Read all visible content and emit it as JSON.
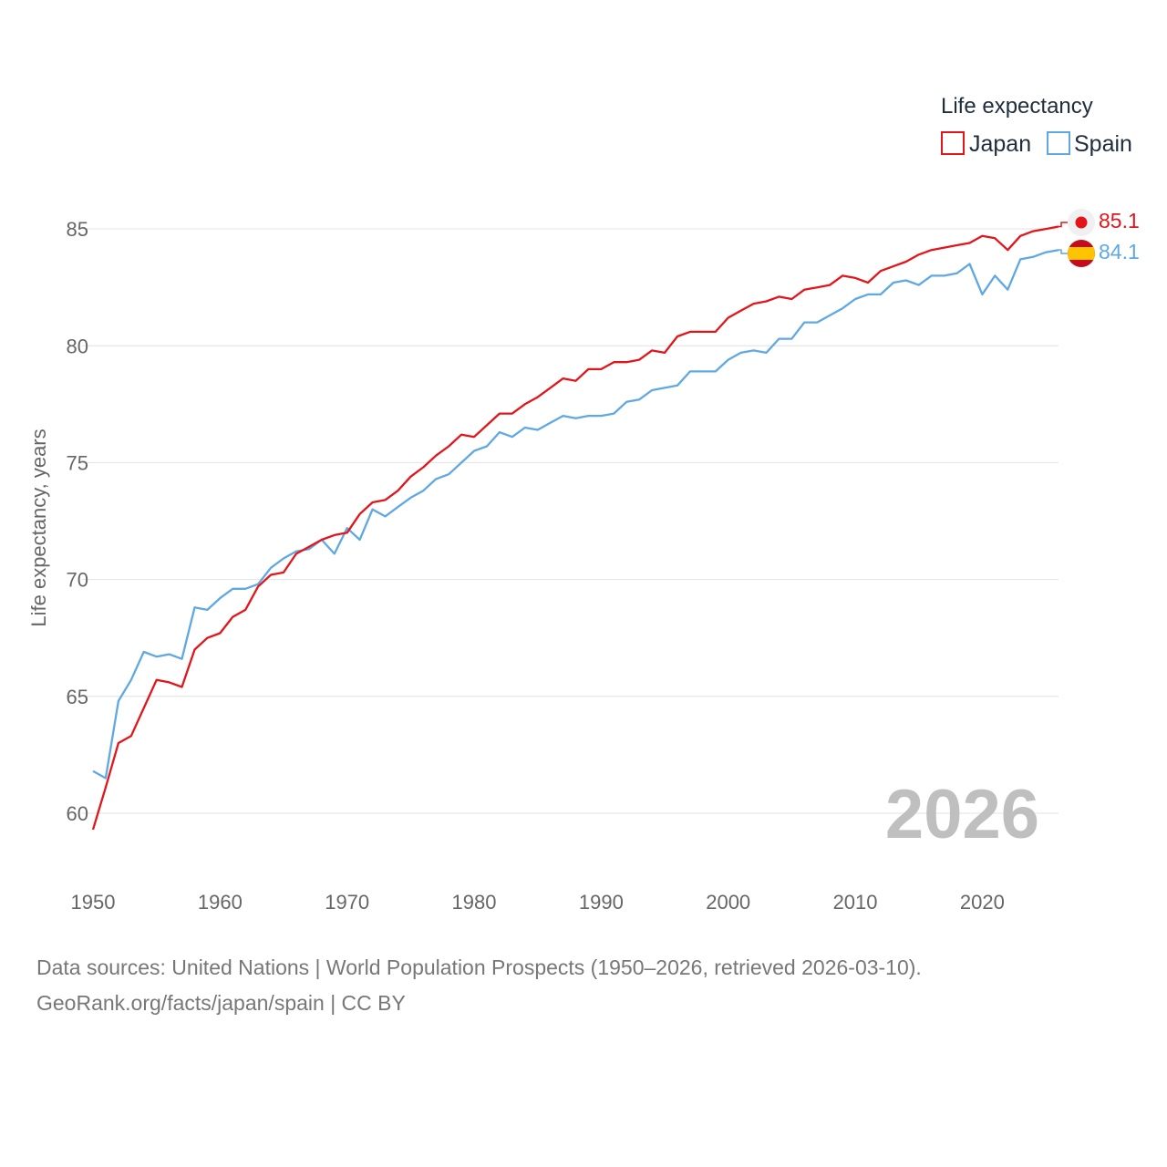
{
  "colors": {
    "japan": "#e3151a",
    "spain": "#5fa8e3",
    "grid": "#e6e6e6",
    "text": "#666666"
  },
  "icons": {
    "japan": "japan-flag-icon",
    "spain": "spain-flag-icon"
  },
  "year_watermark": "2026",
  "chart_data": {
    "type": "line",
    "title": "",
    "xlabel": "",
    "ylabel": "Life expectancy, years",
    "xlim": [
      1950,
      2026
    ],
    "ylim": [
      57.5,
      87.5
    ],
    "x_ticks": [
      1950,
      1960,
      1970,
      1980,
      1990,
      2000,
      2010,
      2020
    ],
    "y_ticks": [
      60,
      65,
      70,
      75,
      80,
      85
    ],
    "grid": true,
    "legend": {
      "title": "Life expectancy",
      "position": "top-right",
      "entries": [
        "Japan",
        "Spain"
      ]
    },
    "x": [
      1950,
      1951,
      1952,
      1953,
      1954,
      1955,
      1956,
      1957,
      1958,
      1959,
      1960,
      1961,
      1962,
      1963,
      1964,
      1965,
      1966,
      1967,
      1968,
      1969,
      1970,
      1971,
      1972,
      1973,
      1974,
      1975,
      1976,
      1977,
      1978,
      1979,
      1980,
      1981,
      1982,
      1983,
      1984,
      1985,
      1986,
      1987,
      1988,
      1989,
      1990,
      1991,
      1992,
      1993,
      1994,
      1995,
      1996,
      1997,
      1998,
      1999,
      2000,
      2001,
      2002,
      2003,
      2004,
      2005,
      2006,
      2007,
      2008,
      2009,
      2010,
      2011,
      2012,
      2013,
      2014,
      2015,
      2016,
      2017,
      2018,
      2019,
      2020,
      2021,
      2022,
      2023,
      2024,
      2025,
      2026
    ],
    "series": [
      {
        "name": "Japan",
        "end_label": "85.1",
        "values": [
          59.3,
          61.1,
          63.0,
          63.3,
          64.5,
          65.7,
          65.6,
          65.4,
          67.0,
          67.5,
          67.7,
          68.4,
          68.7,
          69.7,
          70.2,
          70.3,
          71.1,
          71.4,
          71.7,
          71.9,
          72.0,
          72.8,
          73.3,
          73.4,
          73.8,
          74.4,
          74.8,
          75.3,
          75.7,
          76.2,
          76.1,
          76.6,
          77.1,
          77.1,
          77.5,
          77.8,
          78.2,
          78.6,
          78.5,
          79.0,
          79.0,
          79.3,
          79.3,
          79.4,
          79.8,
          79.7,
          80.4,
          80.6,
          80.6,
          80.6,
          81.2,
          81.5,
          81.8,
          81.9,
          82.1,
          82.0,
          82.4,
          82.5,
          82.6,
          83.0,
          82.9,
          82.7,
          83.2,
          83.4,
          83.6,
          83.9,
          84.1,
          84.2,
          84.3,
          84.4,
          84.7,
          84.6,
          84.1,
          84.7,
          84.9,
          85.0,
          85.1
        ]
      },
      {
        "name": "Spain",
        "end_label": "84.1",
        "values": [
          61.8,
          61.5,
          64.8,
          65.7,
          66.9,
          66.7,
          66.8,
          66.6,
          68.8,
          68.7,
          69.2,
          69.6,
          69.6,
          69.8,
          70.5,
          70.9,
          71.2,
          71.3,
          71.7,
          71.1,
          72.2,
          71.7,
          73.0,
          72.7,
          73.1,
          73.5,
          73.8,
          74.3,
          74.5,
          75.0,
          75.5,
          75.7,
          76.3,
          76.1,
          76.5,
          76.4,
          76.7,
          77.0,
          76.9,
          77.0,
          77.0,
          77.1,
          77.6,
          77.7,
          78.1,
          78.2,
          78.3,
          78.9,
          78.9,
          78.9,
          79.4,
          79.7,
          79.8,
          79.7,
          80.3,
          80.3,
          81.0,
          81.0,
          81.3,
          81.6,
          82.0,
          82.2,
          82.2,
          82.7,
          82.8,
          82.6,
          83.0,
          83.0,
          83.1,
          83.5,
          82.2,
          83.0,
          82.4,
          83.7,
          83.8,
          84.0,
          84.1
        ]
      }
    ]
  },
  "footer": {
    "line1": "Data sources: United Nations | World Population Prospects (1950–2026, retrieved 2026-03-10).",
    "line2": "GeoRank.org/facts/japan/spain | CC BY"
  }
}
